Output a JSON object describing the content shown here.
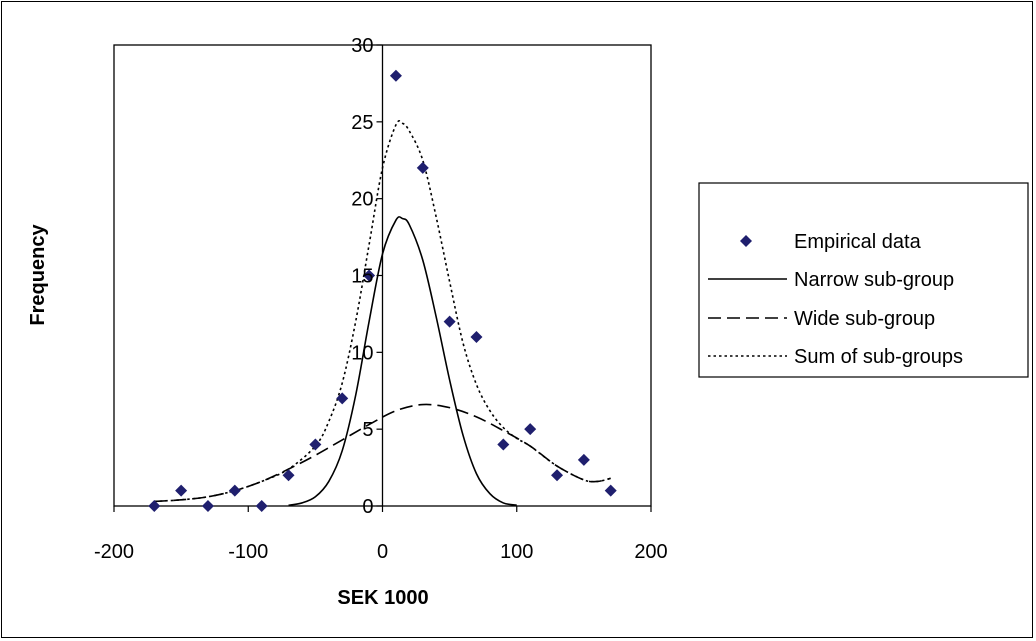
{
  "chart_data": {
    "type": "scatter",
    "xlabel": "SEK 1000",
    "ylabel": "Frequency",
    "xlim": [
      -200,
      200
    ],
    "ylim": [
      0,
      30
    ],
    "x_ticks": [
      -200,
      -100,
      0,
      100,
      200
    ],
    "y_ticks": [
      0,
      5,
      10,
      15,
      20,
      25,
      30
    ],
    "grid": false,
    "legend_position": "right",
    "series": [
      {
        "name": "Empirical data",
        "kind": "markers",
        "marker": "diamond",
        "color": "#1f1f6e",
        "x": [
          -170,
          -150,
          -130,
          -110,
          -90,
          -70,
          -50,
          -30,
          -10,
          10,
          30,
          50,
          70,
          90,
          110,
          130,
          150,
          170
        ],
        "y": [
          0,
          1,
          0,
          1,
          0,
          2,
          4,
          7,
          15,
          28,
          22,
          12,
          11,
          4,
          5,
          2,
          3,
          1
        ]
      },
      {
        "name": "Narrow sub-group",
        "kind": "line",
        "dash": "solid",
        "color": "#000000",
        "x": [
          -70,
          -60,
          -50,
          -40,
          -30,
          -20,
          -10,
          0,
          10,
          15,
          20,
          30,
          40,
          50,
          60,
          70,
          80,
          90,
          100
        ],
        "y": [
          0.05,
          0.2,
          0.6,
          1.6,
          3.6,
          7.2,
          12.0,
          16.4,
          18.6,
          18.7,
          18.3,
          16.0,
          12.3,
          8.2,
          4.6,
          2.1,
          0.8,
          0.2,
          0.05
        ]
      },
      {
        "name": "Wide sub-group",
        "kind": "line",
        "dash": "dashed",
        "color": "#000000",
        "x": [
          -170,
          -150,
          -130,
          -110,
          -90,
          -70,
          -50,
          -30,
          -10,
          10,
          30,
          50,
          70,
          90,
          110,
          130,
          150,
          160,
          170
        ],
        "y": [
          0.3,
          0.4,
          0.6,
          1.0,
          1.6,
          2.4,
          3.3,
          4.3,
          5.3,
          6.2,
          6.6,
          6.4,
          5.8,
          4.9,
          3.9,
          2.6,
          1.7,
          1.6,
          1.8
        ]
      },
      {
        "name": "Sum of sub-groups",
        "kind": "line",
        "dash": "dotted",
        "color": "#000000",
        "x": [
          -170,
          -150,
          -130,
          -110,
          -90,
          -70,
          -50,
          -40,
          -30,
          -20,
          -10,
          0,
          10,
          15,
          20,
          30,
          40,
          50,
          60,
          70,
          80,
          90,
          100,
          110,
          130,
          150,
          160,
          170
        ],
        "y": [
          0.3,
          0.4,
          0.6,
          1.0,
          1.6,
          2.4,
          3.9,
          5.5,
          8.0,
          12.0,
          17.0,
          22.0,
          24.8,
          24.9,
          24.4,
          22.5,
          18.8,
          14.6,
          10.6,
          7.9,
          6.2,
          5.1,
          4.4,
          3.9,
          2.6,
          1.7,
          1.6,
          1.8
        ]
      }
    ]
  }
}
